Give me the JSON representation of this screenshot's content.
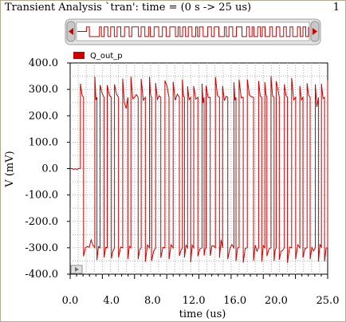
{
  "window": {
    "title": "Transient Analysis `tran': time = (0 s -> 25 us)",
    "page_number": "1"
  },
  "colors": {
    "trace": "#cc0000",
    "grid": "#b0b0b0",
    "scrollbar_track": "#d8d8d8"
  },
  "chart_data": {
    "type": "line",
    "xlabel": "time (us)",
    "ylabel": "V (mV)",
    "xlim": [
      0,
      25
    ],
    "ylim": [
      -400,
      400
    ],
    "xticks": [
      0,
      4,
      8,
      12,
      16,
      20,
      25
    ],
    "xtick_labels": [
      "0.0",
      "4.0",
      "8.0",
      "12.0",
      "16.0",
      "20.0",
      "25.0"
    ],
    "yticks": [
      400,
      300,
      200,
      100,
      0,
      -100,
      -200,
      -300,
      -400
    ],
    "ytick_labels": [
      "400.0",
      "300.0",
      "200.0",
      "100.0",
      "0.0",
      "-100.0",
      "-200.0",
      "-300.0",
      "-400.0"
    ],
    "grid": true,
    "legend": "top-left",
    "series": [
      {
        "name": "Q_out_p",
        "high": 270,
        "low": -300,
        "initial": 0,
        "transitions_us": [
          1.0,
          1.3,
          2.4,
          2.6,
          2.9,
          3.3,
          3.6,
          4.0,
          4.3,
          4.7,
          5.1,
          5.6,
          5.9,
          6.6,
          6.9,
          7.3,
          7.7,
          7.9,
          8.3,
          8.8,
          9.2,
          9.6,
          10.0,
          10.6,
          10.9,
          11.1,
          11.4,
          11.7,
          12.0,
          12.4,
          12.8,
          13.0,
          13.2,
          13.6,
          14.1,
          14.5,
          14.8,
          15.3,
          15.9,
          16.1,
          16.4,
          16.8,
          17.2,
          17.8,
          18.3,
          18.6,
          18.9,
          19.1,
          19.5,
          19.8,
          20.0,
          20.3,
          20.8,
          21.1,
          21.5,
          21.9,
          22.3,
          22.6,
          23.0,
          23.3,
          23.8,
          24.1,
          24.4,
          24.7,
          25.0
        ]
      }
    ]
  }
}
